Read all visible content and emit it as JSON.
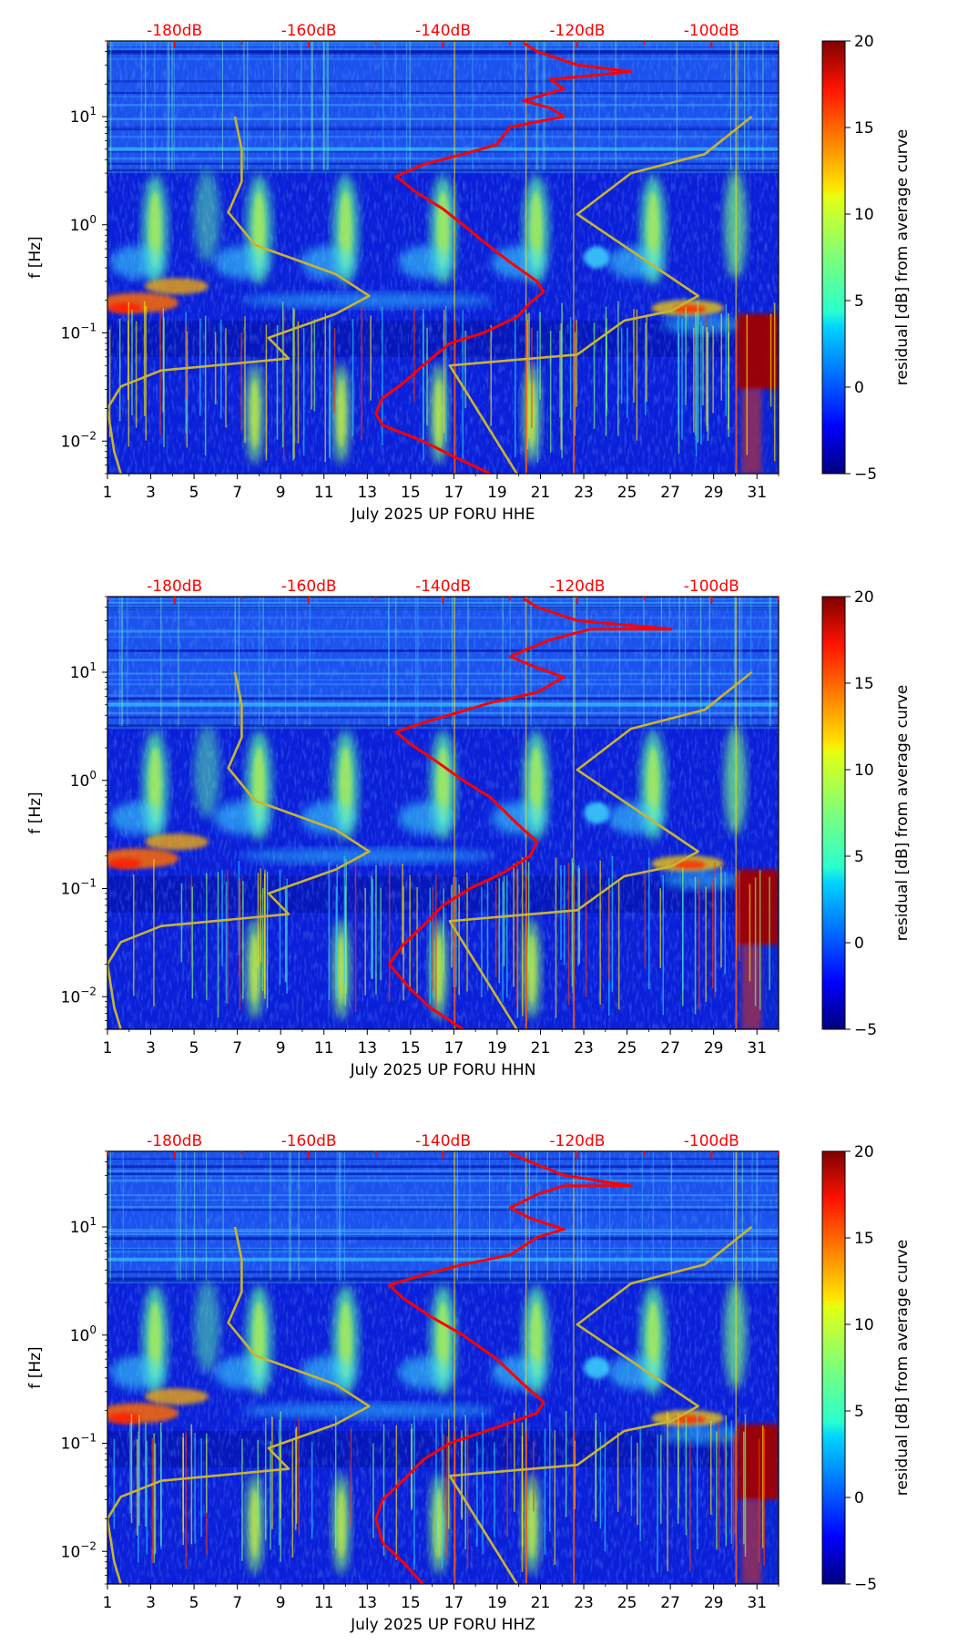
{
  "chart_data": [
    {
      "type": "heatmap",
      "xlabel": "July 2025 UP FORU  HHE",
      "ylabel": "f [Hz]",
      "xlim": [
        1,
        32
      ],
      "ylim": [
        0.005,
        50
      ],
      "yscale": "log",
      "x_ticks": [
        "1",
        "3",
        "5",
        "7",
        "9",
        "11",
        "13",
        "15",
        "17",
        "19",
        "21",
        "23",
        "25",
        "27",
        "29",
        "31"
      ],
      "x_tick_values": [
        1,
        3,
        5,
        7,
        9,
        11,
        13,
        15,
        17,
        19,
        21,
        23,
        25,
        27,
        29,
        31
      ],
      "y_ticks": [
        "10^-2",
        "10^-1",
        "10^0",
        "10^1"
      ],
      "y_tick_values": [
        0.01,
        0.1,
        1,
        10
      ],
      "top_axis": {
        "ticks": [
          "-180dB",
          "-160dB",
          "-140dB",
          "-120dB",
          "-100dB"
        ],
        "values": [
          -180,
          -160,
          -140,
          -120,
          -100
        ],
        "range": [
          -190,
          -90
        ],
        "color": "#ff0000"
      },
      "colorbar": {
        "label": "residual [dB] from average curve",
        "range": [
          -5,
          20
        ],
        "ticks": [
          "−5",
          "0",
          "5",
          "10",
          "15",
          "20"
        ],
        "tick_values": [
          -5,
          0,
          5,
          10,
          15,
          20
        ],
        "colormap": "jet"
      },
      "series": [
        {
          "kind": "psd_db",
          "color": "#ff0000",
          "points": [
            [
              -133,
              0.005
            ],
            [
              -138,
              0.007
            ],
            [
              -143,
              0.01
            ],
            [
              -149,
              0.014
            ],
            [
              -150,
              0.018
            ],
            [
              -149,
              0.025
            ],
            [
              -146,
              0.034
            ],
            [
              -143,
              0.05
            ],
            [
              -139,
              0.08
            ],
            [
              -134,
              0.1
            ],
            [
              -129,
              0.14
            ],
            [
              -127,
              0.19
            ],
            [
              -125,
              0.24
            ],
            [
              -126,
              0.3
            ],
            [
              -130,
              0.45
            ],
            [
              -134,
              0.7
            ],
            [
              -137,
              1.0
            ],
            [
              -140,
              1.4
            ],
            [
              -144,
              2.0
            ],
            [
              -147,
              2.8
            ],
            [
              -143,
              3.6
            ],
            [
              -137,
              4.5
            ],
            [
              -132,
              5.5
            ],
            [
              -130,
              8
            ],
            [
              -122,
              10
            ],
            [
              -124,
              12
            ],
            [
              -128,
              14
            ],
            [
              -122,
              18
            ],
            [
              -124,
              22
            ],
            [
              -112,
              26
            ],
            [
              -120,
              30
            ],
            [
              -126,
              40
            ],
            [
              -128,
              48
            ]
          ]
        },
        {
          "kind": "model_db",
          "color": "#c8b432",
          "points": [
            [
              -188,
              0.005
            ],
            [
              -189,
              0.008
            ],
            [
              -190,
              0.02
            ],
            [
              -188,
              0.032
            ],
            [
              -182,
              0.045
            ],
            [
              -163,
              0.058
            ],
            [
              -166,
              0.09
            ],
            [
              -156,
              0.15
            ],
            [
              -151,
              0.22
            ],
            [
              -156,
              0.35
            ],
            [
              -168,
              0.65
            ],
            [
              -172,
              1.3
            ],
            [
              -170,
              2.5
            ],
            [
              -170,
              5.0
            ],
            [
              -171,
              10.0
            ]
          ]
        },
        {
          "kind": "model_db",
          "color": "#c8b432",
          "points": [
            [
              -129,
              0.005
            ],
            [
              -139,
              0.05
            ],
            [
              -120,
              0.063
            ],
            [
              -113,
              0.13
            ],
            [
              -106,
              0.16
            ],
            [
              -102,
              0.22
            ],
            [
              -120,
              1.25
            ],
            [
              -112,
              3.0
            ],
            [
              -101,
              4.5
            ],
            [
              -94,
              10.0
            ]
          ]
        }
      ]
    },
    {
      "type": "heatmap",
      "xlabel": "July 2025 UP FORU  HHN",
      "ylabel": "f [Hz]",
      "xlim": [
        1,
        32
      ],
      "ylim": [
        0.005,
        50
      ],
      "yscale": "log",
      "x_ticks": [
        "1",
        "3",
        "5",
        "7",
        "9",
        "11",
        "13",
        "15",
        "17",
        "19",
        "21",
        "23",
        "25",
        "27",
        "29",
        "31"
      ],
      "x_tick_values": [
        1,
        3,
        5,
        7,
        9,
        11,
        13,
        15,
        17,
        19,
        21,
        23,
        25,
        27,
        29,
        31
      ],
      "y_ticks": [
        "10^-2",
        "10^-1",
        "10^0",
        "10^1"
      ],
      "y_tick_values": [
        0.01,
        0.1,
        1,
        10
      ],
      "top_axis": {
        "ticks": [
          "-180dB",
          "-160dB",
          "-140dB",
          "-120dB",
          "-100dB"
        ],
        "values": [
          -180,
          -160,
          -140,
          -120,
          -100
        ],
        "range": [
          -190,
          -90
        ],
        "color": "#ff0000"
      },
      "colorbar": {
        "label": "residual [dB] from average curve",
        "range": [
          -5,
          20
        ],
        "ticks": [
          "−5",
          "0",
          "5",
          "10",
          "15",
          "20"
        ],
        "tick_values": [
          -5,
          0,
          5,
          10,
          15,
          20
        ],
        "colormap": "jet"
      },
      "series": [
        {
          "kind": "psd_db",
          "color": "#ff0000",
          "points": [
            [
              -137,
              0.005
            ],
            [
              -142,
              0.008
            ],
            [
              -145,
              0.012
            ],
            [
              -148,
              0.02
            ],
            [
              -146,
              0.03
            ],
            [
              -143,
              0.045
            ],
            [
              -140,
              0.07
            ],
            [
              -136,
              0.1
            ],
            [
              -131,
              0.14
            ],
            [
              -127,
              0.2
            ],
            [
              -126,
              0.27
            ],
            [
              -129,
              0.4
            ],
            [
              -133,
              0.7
            ],
            [
              -137,
              1.0
            ],
            [
              -141,
              1.5
            ],
            [
              -145,
              2.2
            ],
            [
              -147,
              2.8
            ],
            [
              -143,
              3.4
            ],
            [
              -138,
              4.2
            ],
            [
              -133,
              5.2
            ],
            [
              -126,
              6.5
            ],
            [
              -122,
              9
            ],
            [
              -126,
              11
            ],
            [
              -130,
              14
            ],
            [
              -124,
              20
            ],
            [
              -118,
              25
            ],
            [
              -106,
              25
            ],
            [
              -120,
              30
            ],
            [
              -126,
              40
            ],
            [
              -128,
              48
            ]
          ]
        },
        {
          "kind": "model_db",
          "color": "#c8b432",
          "points": [
            [
              -188,
              0.005
            ],
            [
              -189,
              0.008
            ],
            [
              -190,
              0.02
            ],
            [
              -188,
              0.032
            ],
            [
              -182,
              0.045
            ],
            [
              -163,
              0.058
            ],
            [
              -166,
              0.09
            ],
            [
              -156,
              0.15
            ],
            [
              -151,
              0.22
            ],
            [
              -156,
              0.35
            ],
            [
              -168,
              0.65
            ],
            [
              -172,
              1.3
            ],
            [
              -170,
              2.5
            ],
            [
              -170,
              5.0
            ],
            [
              -171,
              10.0
            ]
          ]
        },
        {
          "kind": "model_db",
          "color": "#c8b432",
          "points": [
            [
              -129,
              0.005
            ],
            [
              -139,
              0.05
            ],
            [
              -120,
              0.063
            ],
            [
              -113,
              0.13
            ],
            [
              -106,
              0.16
            ],
            [
              -102,
              0.22
            ],
            [
              -120,
              1.25
            ],
            [
              -112,
              3.0
            ],
            [
              -101,
              4.5
            ],
            [
              -94,
              10.0
            ]
          ]
        }
      ]
    },
    {
      "type": "heatmap",
      "xlabel": "July 2025 UP FORU  HHZ",
      "ylabel": "f [Hz]",
      "xlim": [
        1,
        32
      ],
      "ylim": [
        0.005,
        50
      ],
      "yscale": "log",
      "x_ticks": [
        "1",
        "3",
        "5",
        "7",
        "9",
        "11",
        "13",
        "15",
        "17",
        "19",
        "21",
        "23",
        "25",
        "27",
        "29",
        "31"
      ],
      "x_tick_values": [
        1,
        3,
        5,
        7,
        9,
        11,
        13,
        15,
        17,
        19,
        21,
        23,
        25,
        27,
        29,
        31
      ],
      "y_ticks": [
        "10^-2",
        "10^-1",
        "10^0",
        "10^1"
      ],
      "y_tick_values": [
        0.01,
        0.1,
        1,
        10
      ],
      "top_axis": {
        "ticks": [
          "-180dB",
          "-160dB",
          "-140dB",
          "-120dB",
          "-100dB"
        ],
        "values": [
          -180,
          -160,
          -140,
          -120,
          -100
        ],
        "range": [
          -190,
          -90
        ],
        "color": "#ff0000"
      },
      "colorbar": {
        "label": "residual [dB] from average curve",
        "range": [
          -5,
          20
        ],
        "ticks": [
          "−5",
          "0",
          "5",
          "10",
          "15",
          "20"
        ],
        "tick_values": [
          -5,
          0,
          5,
          10,
          15,
          20
        ],
        "colormap": "jet"
      },
      "series": [
        {
          "kind": "psd_db",
          "color": "#ff0000",
          "points": [
            [
              -143,
              0.005
            ],
            [
              -146,
              0.008
            ],
            [
              -149,
              0.012
            ],
            [
              -150,
              0.02
            ],
            [
              -149,
              0.03
            ],
            [
              -146,
              0.045
            ],
            [
              -143,
              0.07
            ],
            [
              -139,
              0.1
            ],
            [
              -132,
              0.14
            ],
            [
              -126,
              0.19
            ],
            [
              -125,
              0.24
            ],
            [
              -128,
              0.35
            ],
            [
              -132,
              0.6
            ],
            [
              -137,
              1.0
            ],
            [
              -142,
              1.5
            ],
            [
              -146,
              2.2
            ],
            [
              -148,
              2.9
            ],
            [
              -143,
              3.6
            ],
            [
              -137,
              4.5
            ],
            [
              -130,
              5.5
            ],
            [
              -126,
              8
            ],
            [
              -122,
              9.5
            ],
            [
              -127,
              12
            ],
            [
              -130,
              15
            ],
            [
              -126,
              20
            ],
            [
              -122,
              24
            ],
            [
              -112,
              24
            ],
            [
              -122,
              30
            ],
            [
              -127,
              40
            ],
            [
              -130,
              48
            ]
          ]
        },
        {
          "kind": "model_db",
          "color": "#c8b432",
          "points": [
            [
              -188,
              0.005
            ],
            [
              -189,
              0.008
            ],
            [
              -190,
              0.02
            ],
            [
              -188,
              0.032
            ],
            [
              -182,
              0.045
            ],
            [
              -163,
              0.058
            ],
            [
              -166,
              0.09
            ],
            [
              -156,
              0.15
            ],
            [
              -151,
              0.22
            ],
            [
              -156,
              0.35
            ],
            [
              -168,
              0.65
            ],
            [
              -172,
              1.3
            ],
            [
              -170,
              2.5
            ],
            [
              -170,
              5.0
            ],
            [
              -171,
              10.0
            ]
          ]
        },
        {
          "kind": "model_db",
          "color": "#c8b432",
          "points": [
            [
              -129,
              0.005
            ],
            [
              -139,
              0.05
            ],
            [
              -120,
              0.063
            ],
            [
              -113,
              0.13
            ],
            [
              -106,
              0.16
            ],
            [
              -102,
              0.22
            ],
            [
              -120,
              1.25
            ],
            [
              -112,
              3.0
            ],
            [
              -101,
              4.5
            ],
            [
              -94,
              10.0
            ]
          ]
        }
      ]
    }
  ]
}
